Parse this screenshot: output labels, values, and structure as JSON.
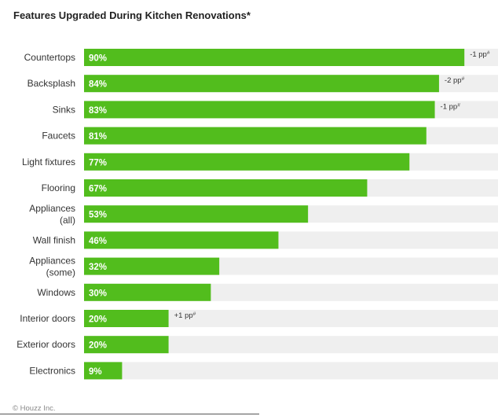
{
  "colors": {
    "bar": "#52bd1d",
    "track": "#efefef"
  },
  "chart_data": {
    "type": "bar",
    "orientation": "horizontal",
    "title": "Features Upgraded During Kitchen Renovations*",
    "xlim": [
      0,
      100
    ],
    "grid": false,
    "legend": "none",
    "categories": [
      [
        "Countertops"
      ],
      [
        "Backsplash"
      ],
      [
        "Sinks"
      ],
      [
        "Faucets"
      ],
      [
        "Light fixtures"
      ],
      [
        "Flooring"
      ],
      [
        "Appliances",
        "(all)"
      ],
      [
        "Wall finish"
      ],
      [
        "Appliances",
        "(some)"
      ],
      [
        "Windows"
      ],
      [
        "Interior doors"
      ],
      [
        "Exterior doors"
      ],
      [
        "Electronics"
      ]
    ],
    "values": [
      90,
      84,
      83,
      81,
      77,
      67,
      53,
      46,
      32,
      30,
      20,
      20,
      9
    ],
    "value_labels": [
      "90%",
      "84%",
      "83%",
      "81%",
      "77%",
      "67%",
      "53%",
      "46%",
      "32%",
      "30%",
      "20%",
      "20%",
      "9%"
    ],
    "annotations": [
      "-1 pp",
      "-2 pp",
      "-1 pp",
      "",
      "",
      "",
      "",
      "",
      "",
      "",
      "+1 pp",
      "",
      ""
    ],
    "annotation_mark": "#"
  },
  "footer": {
    "credit": "© Houzz Inc."
  }
}
